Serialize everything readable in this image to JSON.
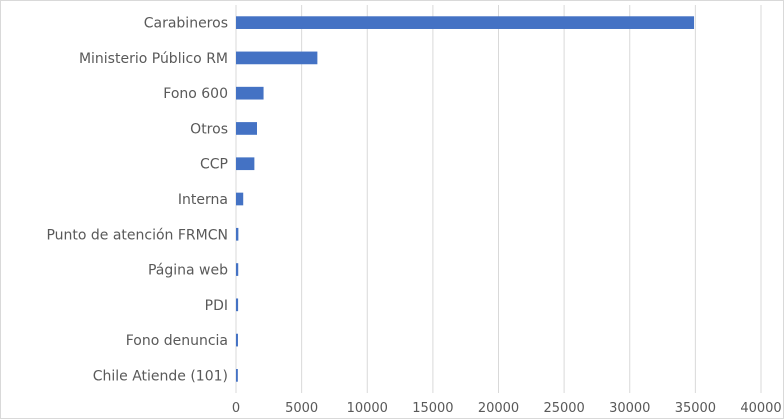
{
  "chart_data": {
    "type": "bar",
    "orientation": "horizontal",
    "categories": [
      "Carabineros",
      "Ministerio Público  RM",
      "Fono 600",
      "Otros",
      "CCP",
      "Interna",
      "Punto de atención FRMCN",
      "Página  web",
      "PDI",
      "Fono denuncia",
      "Chile Atiende (101)"
    ],
    "values": [
      34900,
      6200,
      2100,
      1600,
      1400,
      550,
      180,
      170,
      160,
      150,
      140
    ],
    "xlim": [
      0,
      40000
    ],
    "xticks": [
      0,
      5000,
      10000,
      15000,
      20000,
      25000,
      30000,
      35000,
      40000
    ],
    "grid": "vertical",
    "bar_color": "#4472c4",
    "title": "",
    "xlabel": "",
    "ylabel": ""
  }
}
